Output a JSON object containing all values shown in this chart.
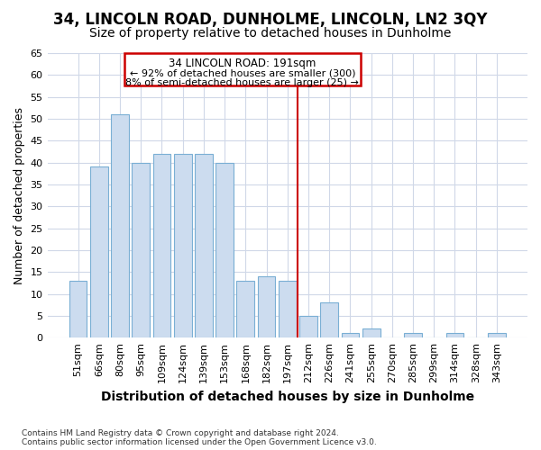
{
  "title": "34, LINCOLN ROAD, DUNHOLME, LINCOLN, LN2 3QY",
  "subtitle": "Size of property relative to detached houses in Dunholme",
  "xlabel": "Distribution of detached houses by size in Dunholme",
  "ylabel": "Number of detached properties",
  "categories": [
    "51sqm",
    "66sqm",
    "80sqm",
    "95sqm",
    "109sqm",
    "124sqm",
    "139sqm",
    "153sqm",
    "168sqm",
    "182sqm",
    "197sqm",
    "212sqm",
    "226sqm",
    "241sqm",
    "255sqm",
    "270sqm",
    "285sqm",
    "299sqm",
    "314sqm",
    "328sqm",
    "343sqm"
  ],
  "values": [
    13,
    39,
    51,
    40,
    42,
    42,
    42,
    40,
    13,
    14,
    13,
    5,
    8,
    1,
    2,
    0,
    1,
    0,
    1,
    0,
    1
  ],
  "bar_color": "#ccdcef",
  "bar_edge_color": "#7aafd4",
  "background_color": "#ffffff",
  "grid_color": "#d0d8e8",
  "ylim": [
    0,
    65
  ],
  "yticks": [
    0,
    5,
    10,
    15,
    20,
    25,
    30,
    35,
    40,
    45,
    50,
    55,
    60,
    65
  ],
  "vline_x_idx": 10,
  "vline_color": "#cc0000",
  "annotation_title": "34 LINCOLN ROAD: 191sqm",
  "annotation_line1": "← 92% of detached houses are smaller (300)",
  "annotation_line2": "8% of semi-detached houses are larger (25) →",
  "annotation_box_color": "#cc0000",
  "footnote1": "Contains HM Land Registry data © Crown copyright and database right 2024.",
  "footnote2": "Contains public sector information licensed under the Open Government Licence v3.0.",
  "title_fontsize": 12,
  "subtitle_fontsize": 10,
  "tick_fontsize": 8,
  "ylabel_fontsize": 9,
  "xlabel_fontsize": 10
}
